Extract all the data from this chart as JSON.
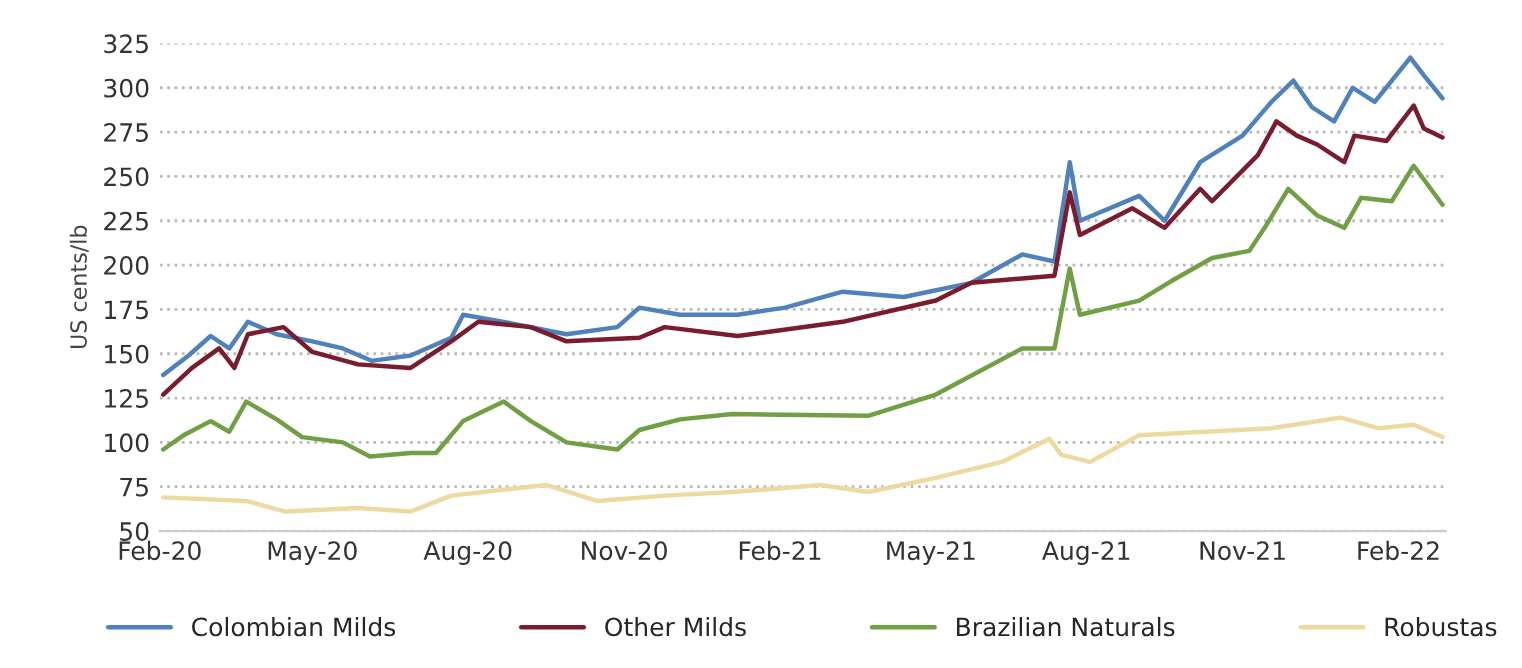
{
  "chart_data": {
    "type": "line",
    "ylabel": "US cents/lb",
    "xlim": [
      "2020-02-01",
      "2022-03-01"
    ],
    "ylim": [
      50,
      325
    ],
    "yticks": [
      50,
      75,
      100,
      125,
      150,
      175,
      200,
      225,
      250,
      275,
      300,
      325
    ],
    "xticks": [
      {
        "value": "2020-02-01",
        "label": "Feb-20"
      },
      {
        "value": "2020-05-01",
        "label": "May-20"
      },
      {
        "value": "2020-08-01",
        "label": "Aug-20"
      },
      {
        "value": "2020-11-01",
        "label": "Nov-20"
      },
      {
        "value": "2021-02-01",
        "label": "Feb-21"
      },
      {
        "value": "2021-05-01",
        "label": "May-21"
      },
      {
        "value": "2021-08-01",
        "label": "Aug-21"
      },
      {
        "value": "2021-11-01",
        "label": "Nov-21"
      },
      {
        "value": "2022-02-01",
        "label": "Feb-22"
      }
    ],
    "grid": "y",
    "legend": "bottom",
    "marker": "none",
    "line_style": "solid",
    "series": [
      {
        "name": "Colombian Milds",
        "color": "#4f81bd",
        "x": [
          "2020-02-03",
          "2020-02-18",
          "2020-03-02",
          "2020-03-13",
          "2020-03-24",
          "2020-04-10",
          "2020-05-01",
          "2020-05-19",
          "2020-06-05",
          "2020-06-28",
          "2020-07-22",
          "2020-07-29",
          "2020-08-22",
          "2020-09-28",
          "2020-10-28",
          "2020-11-10",
          "2020-12-04",
          "2021-01-07",
          "2021-02-04",
          "2021-03-10",
          "2021-04-15",
          "2021-05-25",
          "2021-06-24",
          "2021-07-13",
          "2021-07-22",
          "2021-07-28",
          "2021-09-01",
          "2021-09-16",
          "2021-10-07",
          "2021-11-01",
          "2021-11-18",
          "2021-12-01",
          "2021-12-12",
          "2021-12-25",
          "2022-01-05",
          "2022-01-18",
          "2022-02-08",
          "2022-02-16",
          "2022-02-27"
        ],
        "values": [
          138,
          149,
          160,
          153,
          168,
          161,
          157,
          153,
          146,
          149,
          159,
          172,
          168,
          161,
          165,
          176,
          172,
          172,
          176,
          185,
          182,
          190,
          206,
          202,
          258,
          225,
          239,
          225,
          258,
          273,
          292,
          304,
          289,
          281,
          300,
          292,
          317,
          307,
          294
        ]
      },
      {
        "name": "Other Milds",
        "color": "#7b1c2e",
        "x": [
          "2020-02-03",
          "2020-02-20",
          "2020-03-07",
          "2020-03-16",
          "2020-03-24",
          "2020-04-14",
          "2020-05-01",
          "2020-05-28",
          "2020-06-28",
          "2020-07-22",
          "2020-08-07",
          "2020-09-07",
          "2020-09-28",
          "2020-11-10",
          "2020-11-25",
          "2021-01-07",
          "2021-03-10",
          "2021-05-04",
          "2021-05-25",
          "2021-07-13",
          "2021-07-22",
          "2021-07-28",
          "2021-08-28",
          "2021-09-16",
          "2021-10-07",
          "2021-10-14",
          "2021-11-10",
          "2021-11-21",
          "2021-12-03",
          "2021-12-15",
          "2021-12-31",
          "2022-01-06",
          "2022-01-25",
          "2022-02-10",
          "2022-02-16",
          "2022-02-27"
        ],
        "values": [
          127,
          142,
          153,
          142,
          161,
          165,
          151,
          144,
          142,
          157,
          168,
          165,
          157,
          159,
          165,
          160,
          168,
          180,
          190,
          194,
          241,
          217,
          232,
          221,
          243,
          236,
          262,
          281,
          273,
          268,
          258,
          273,
          270,
          290,
          277,
          272
        ]
      },
      {
        "name": "Brazilian Naturals",
        "color": "#70a043",
        "x": [
          "2020-02-03",
          "2020-02-15",
          "2020-03-02",
          "2020-03-13",
          "2020-03-23",
          "2020-04-10",
          "2020-04-25",
          "2020-05-19",
          "2020-06-04",
          "2020-06-28",
          "2020-07-13",
          "2020-07-29",
          "2020-08-22",
          "2020-09-07",
          "2020-09-28",
          "2020-10-28",
          "2020-11-10",
          "2020-12-04",
          "2021-01-04",
          "2021-03-25",
          "2021-05-04",
          "2021-06-24",
          "2021-07-13",
          "2021-07-22",
          "2021-07-28",
          "2021-09-01",
          "2021-09-20",
          "2021-10-14",
          "2021-11-05",
          "2021-11-14",
          "2021-11-28",
          "2021-12-15",
          "2021-12-31",
          "2022-01-10",
          "2022-01-28",
          "2022-02-10",
          "2022-02-27"
        ],
        "values": [
          96,
          104,
          112,
          106,
          123,
          113,
          103,
          100,
          92,
          94,
          94,
          112,
          123,
          112,
          100,
          96,
          107,
          113,
          116,
          115,
          127,
          153,
          153,
          198,
          172,
          180,
          191,
          204,
          208,
          221,
          243,
          228,
          221,
          238,
          236,
          256,
          234
        ]
      },
      {
        "name": "Robustas",
        "color": "#eed9a0",
        "x": [
          "2020-02-03",
          "2020-03-23",
          "2020-04-15",
          "2020-05-28",
          "2020-06-28",
          "2020-07-22",
          "2020-09-16",
          "2020-10-16",
          "2020-11-25",
          "2021-01-04",
          "2021-02-25",
          "2021-03-25",
          "2021-05-04",
          "2021-06-12",
          "2021-07-10",
          "2021-07-17",
          "2021-08-03",
          "2021-09-01",
          "2021-11-18",
          "2021-12-29",
          "2022-01-20",
          "2022-02-10",
          "2022-02-27"
        ],
        "values": [
          69,
          67,
          61,
          63,
          61,
          70,
          76,
          67,
          70,
          72,
          76,
          72,
          80,
          89,
          102,
          93,
          89,
          104,
          108,
          114,
          108,
          110,
          103
        ]
      }
    ]
  }
}
